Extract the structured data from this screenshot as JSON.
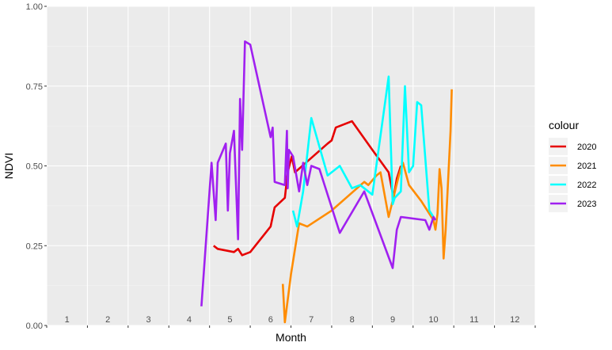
{
  "chart_data": {
    "type": "line",
    "xlabel": "Month",
    "ylabel": "NDVI",
    "xlim": [
      0.5,
      12.5
    ],
    "ylim": [
      0,
      1
    ],
    "x_ticks": [
      1,
      2,
      3,
      4,
      5,
      6,
      7,
      8,
      9,
      10,
      11,
      12
    ],
    "y_ticks": [
      0,
      0.25,
      0.5,
      0.75,
      1
    ],
    "y_tick_labels": [
      "0.00",
      "0.25",
      "0.50",
      "0.75",
      "1.00"
    ],
    "grid": true,
    "legend": {
      "title": "colour",
      "position": "right"
    },
    "series": [
      {
        "name": "2020",
        "color": "#e60000",
        "points": [
          [
            4.6,
            0.25
          ],
          [
            4.7,
            0.24
          ],
          [
            5.1,
            0.23
          ],
          [
            5.2,
            0.24
          ],
          [
            5.3,
            0.22
          ],
          [
            5.5,
            0.23
          ],
          [
            6.0,
            0.31
          ],
          [
            6.1,
            0.37
          ],
          [
            6.35,
            0.4
          ],
          [
            6.42,
            0.48
          ],
          [
            6.52,
            0.53
          ],
          [
            6.6,
            0.48
          ],
          [
            7.4,
            0.57
          ],
          [
            7.5,
            0.58
          ],
          [
            7.6,
            0.62
          ],
          [
            8.0,
            0.64
          ],
          [
            8.5,
            0.55
          ],
          [
            8.9,
            0.48
          ],
          [
            9.02,
            0.4
          ],
          [
            9.1,
            0.46
          ],
          [
            9.2,
            0.5
          ]
        ]
      },
      {
        "name": "2021",
        "color": "#ff8c00",
        "points": [
          [
            6.3,
            0.13
          ],
          [
            6.35,
            0.01
          ],
          [
            6.5,
            0.16
          ],
          [
            6.7,
            0.32
          ],
          [
            6.9,
            0.31
          ],
          [
            7.5,
            0.36
          ],
          [
            8.3,
            0.45
          ],
          [
            8.4,
            0.44
          ],
          [
            8.6,
            0.47
          ],
          [
            8.7,
            0.48
          ],
          [
            8.9,
            0.34
          ],
          [
            9.15,
            0.47
          ],
          [
            9.25,
            0.51
          ],
          [
            9.4,
            0.44
          ],
          [
            9.7,
            0.39
          ],
          [
            10.0,
            0.33
          ],
          [
            10.05,
            0.3
          ],
          [
            10.1,
            0.35
          ],
          [
            10.15,
            0.49
          ],
          [
            10.2,
            0.43
          ],
          [
            10.25,
            0.21
          ],
          [
            10.3,
            0.3
          ],
          [
            10.42,
            0.61
          ],
          [
            10.45,
            0.74
          ]
        ]
      },
      {
        "name": "2022",
        "color": "#00ffff",
        "points": [
          [
            6.55,
            0.36
          ],
          [
            6.65,
            0.31
          ],
          [
            6.8,
            0.42
          ],
          [
            7.0,
            0.65
          ],
          [
            7.4,
            0.47
          ],
          [
            7.7,
            0.5
          ],
          [
            8.0,
            0.43
          ],
          [
            8.2,
            0.44
          ],
          [
            8.5,
            0.41
          ],
          [
            8.9,
            0.78
          ],
          [
            9.0,
            0.38
          ],
          [
            9.05,
            0.4
          ],
          [
            9.2,
            0.42
          ],
          [
            9.3,
            0.75
          ],
          [
            9.4,
            0.48
          ],
          [
            9.5,
            0.5
          ],
          [
            9.6,
            0.7
          ],
          [
            9.7,
            0.69
          ],
          [
            9.9,
            0.36
          ],
          [
            10.0,
            0.34
          ]
        ]
      },
      {
        "name": "2023",
        "color": "#a020f0",
        "points": [
          [
            4.3,
            0.06
          ],
          [
            4.55,
            0.51
          ],
          [
            4.65,
            0.33
          ],
          [
            4.7,
            0.51
          ],
          [
            4.9,
            0.57
          ],
          [
            4.95,
            0.36
          ],
          [
            5.0,
            0.54
          ],
          [
            5.1,
            0.61
          ],
          [
            5.2,
            0.27
          ],
          [
            5.25,
            0.71
          ],
          [
            5.3,
            0.55
          ],
          [
            5.37,
            0.89
          ],
          [
            5.5,
            0.88
          ],
          [
            6.0,
            0.59
          ],
          [
            6.05,
            0.62
          ],
          [
            6.1,
            0.45
          ],
          [
            6.35,
            0.44
          ],
          [
            6.4,
            0.61
          ],
          [
            6.42,
            0.43
          ],
          [
            6.45,
            0.55
          ],
          [
            6.55,
            0.53
          ],
          [
            6.7,
            0.42
          ],
          [
            6.8,
            0.51
          ],
          [
            6.9,
            0.44
          ],
          [
            7.0,
            0.5
          ],
          [
            7.2,
            0.49
          ],
          [
            7.7,
            0.29
          ],
          [
            8.3,
            0.42
          ],
          [
            9.0,
            0.18
          ],
          [
            9.1,
            0.3
          ],
          [
            9.2,
            0.34
          ],
          [
            9.8,
            0.33
          ],
          [
            9.9,
            0.3
          ],
          [
            10.0,
            0.34
          ],
          [
            10.05,
            0.33
          ]
        ]
      }
    ]
  }
}
